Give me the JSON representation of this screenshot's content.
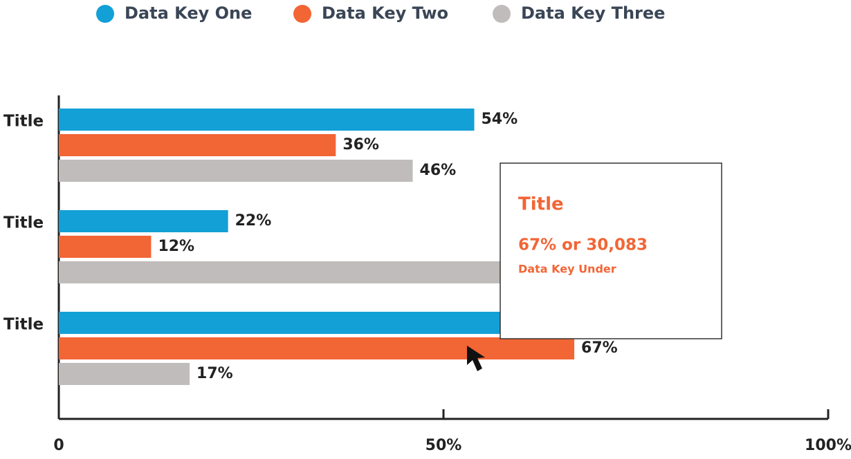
{
  "chart_data": {
    "type": "bar",
    "orientation": "horizontal",
    "categories": [
      "Title",
      "Title",
      "Title"
    ],
    "series": [
      {
        "name": "Data Key One",
        "color": "#12a0d7",
        "values": [
          54,
          22,
          65
        ],
        "value_labels": [
          "54%",
          "22%",
          null
        ]
      },
      {
        "name": "Data Key Two",
        "color": "#f26535",
        "values": [
          36,
          12,
          67
        ],
        "value_labels": [
          "36%",
          "12%",
          "67%"
        ]
      },
      {
        "name": "Data Key Three",
        "color": "#c0bcbb",
        "values": [
          46,
          60,
          17
        ],
        "value_labels": [
          "46%",
          null,
          "17%"
        ]
      }
    ],
    "xlim": [
      0,
      100
    ],
    "xticks": [
      0,
      {
        "value": 50,
        "label": "50%"
      },
      {
        "value": 100,
        "label": "100%"
      }
    ],
    "legend": "top",
    "tooltip": {
      "title": "Title",
      "value": "67% or 30,083",
      "subtitle": "Data Key Under"
    }
  }
}
